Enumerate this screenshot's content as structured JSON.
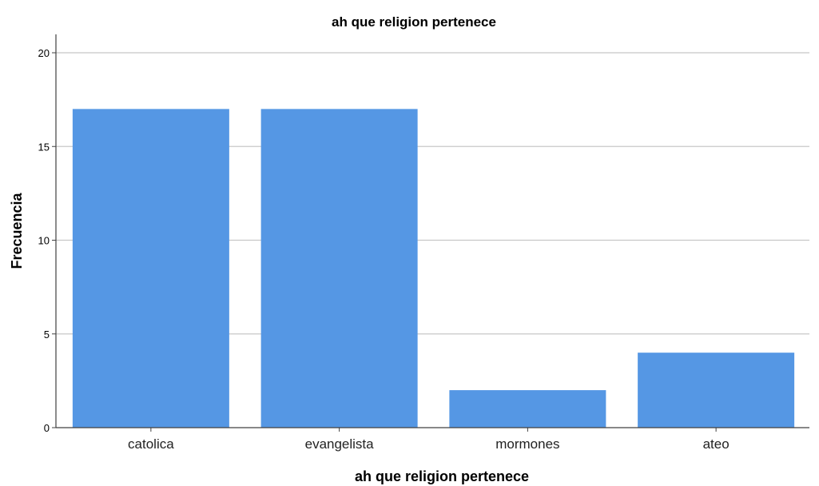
{
  "chart_data": {
    "type": "bar",
    "title": "ah que religion pertenece",
    "xlabel": "ah que religion pertenece",
    "ylabel": "Frecuencia",
    "categories": [
      "catolica",
      "evangelista",
      "mormones",
      "ateo"
    ],
    "values": [
      17,
      17,
      2,
      4
    ],
    "ylim": [
      0,
      21
    ],
    "yticks": [
      0,
      5,
      10,
      15,
      20
    ],
    "grid": true,
    "legend": "none",
    "colors": {
      "bar": "#5597E4",
      "grid": "#C8C8C8",
      "axis": "#404040"
    }
  }
}
